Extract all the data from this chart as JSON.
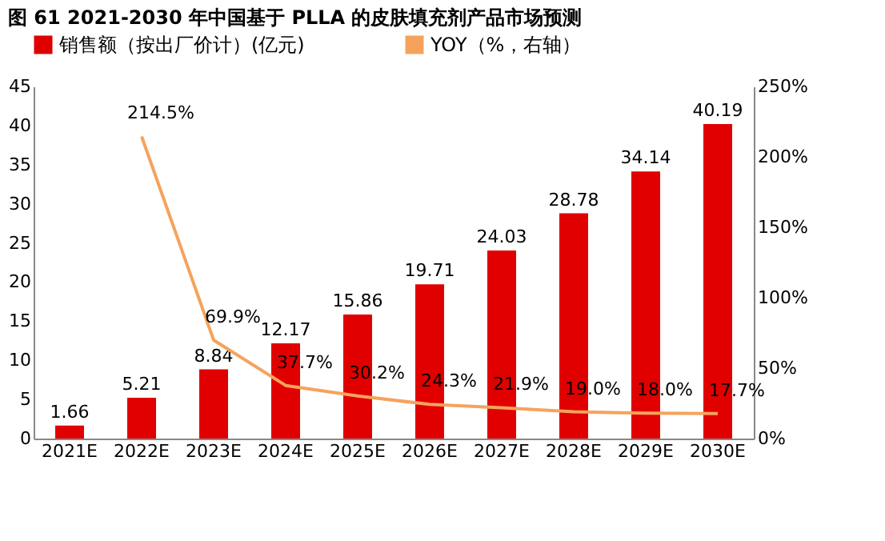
{
  "chart_data": {
    "type": "bar",
    "title": "图 61 2021-2030 年中国基于 PLLA 的皮肤填充剂产品市场预测",
    "categories": [
      "2021E",
      "2022E",
      "2023E",
      "2024E",
      "2025E",
      "2026E",
      "2027E",
      "2028E",
      "2029E",
      "2030E"
    ],
    "series": [
      {
        "name": "销售额（按出厂价计）(亿元)",
        "color": "#e00000",
        "values": [
          1.66,
          5.21,
          8.84,
          12.17,
          15.86,
          19.71,
          24.03,
          28.78,
          34.14,
          40.19
        ]
      },
      {
        "name": "YOY（%，右轴）",
        "type": "line",
        "axis": "y2",
        "color": "#f5a35c",
        "values": [
          null,
          214.5,
          69.9,
          37.7,
          30.2,
          24.3,
          21.9,
          19.0,
          18.0,
          17.7
        ],
        "value_labels": [
          null,
          "214.5%",
          "69.9%",
          "37.7%",
          "30.2%",
          "24.3%",
          "21.9%",
          "19.0%",
          "18.0%",
          "17.7%"
        ]
      }
    ],
    "ylim": [
      0,
      45
    ],
    "yticks": [
      0,
      5,
      10,
      15,
      20,
      25,
      30,
      35,
      40,
      45
    ],
    "y2lim": [
      0,
      250
    ],
    "y2ticks": [
      {
        "value": 0,
        "label": "0%"
      },
      {
        "value": 50,
        "label": "50%"
      },
      {
        "value": 100,
        "label": "100%"
      },
      {
        "value": 150,
        "label": "150%"
      },
      {
        "value": 200,
        "label": "200%"
      },
      {
        "value": 250,
        "label": "250%"
      }
    ],
    "data_labels": true,
    "legend": "top",
    "grid": false
  }
}
